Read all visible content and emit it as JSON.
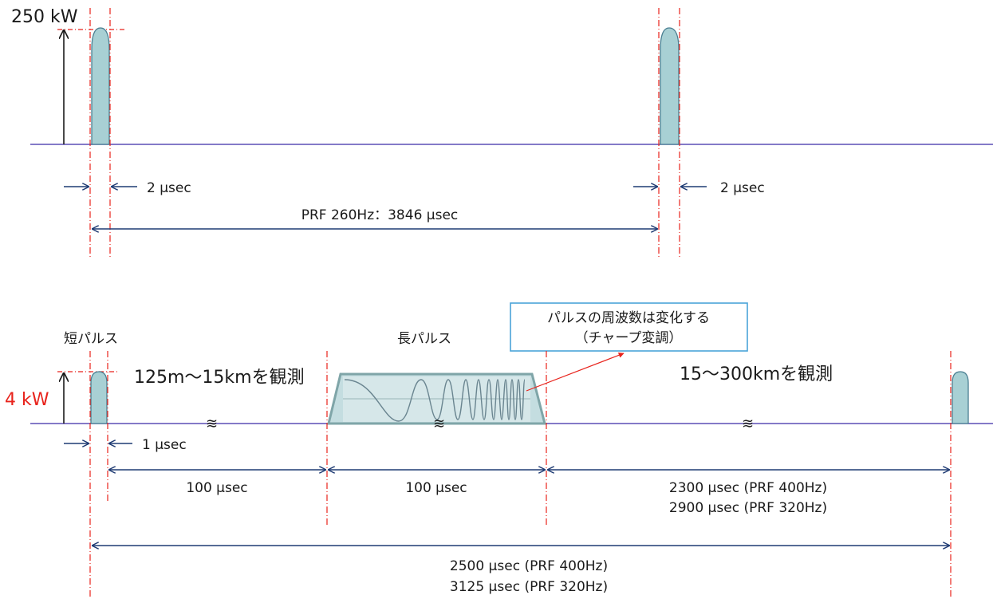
{
  "top": {
    "power_label": "250 kW",
    "pulse_width_left": "2 μsec",
    "pulse_width_right": "2 μsec",
    "prf_label": "PRF 260Hz：3846 μsec"
  },
  "bottom": {
    "short_pulse_label": "短パルス",
    "long_pulse_label": "長パルス",
    "power_label": "4 kW",
    "short_range_label": "125m～15kmを観測",
    "long_range_label": "15～300kmを観測",
    "callout_line1": "パルスの周波数は変化する",
    "callout_line2": "（チャープ変調）",
    "short_width_label": "1 μsec",
    "gap_label": "100 μsec",
    "long_width_label": "100 μsec",
    "rest_label_1": "2300 μsec (PRF 400Hz)",
    "rest_label_2": "2900 μsec (PRF 320Hz)",
    "total_label_1": "2500 μsec (PRF 400Hz)",
    "total_label_2": "3125 μsec (PRF 320Hz)"
  },
  "colors": {
    "baseline": "#5b4fb5",
    "pulse_fill": "#a8d0d4",
    "pulse_stroke": "#4a7f92",
    "guide": "#e8231c",
    "dimension": "#1f3b73",
    "callout_border": "#4aa3d8"
  }
}
